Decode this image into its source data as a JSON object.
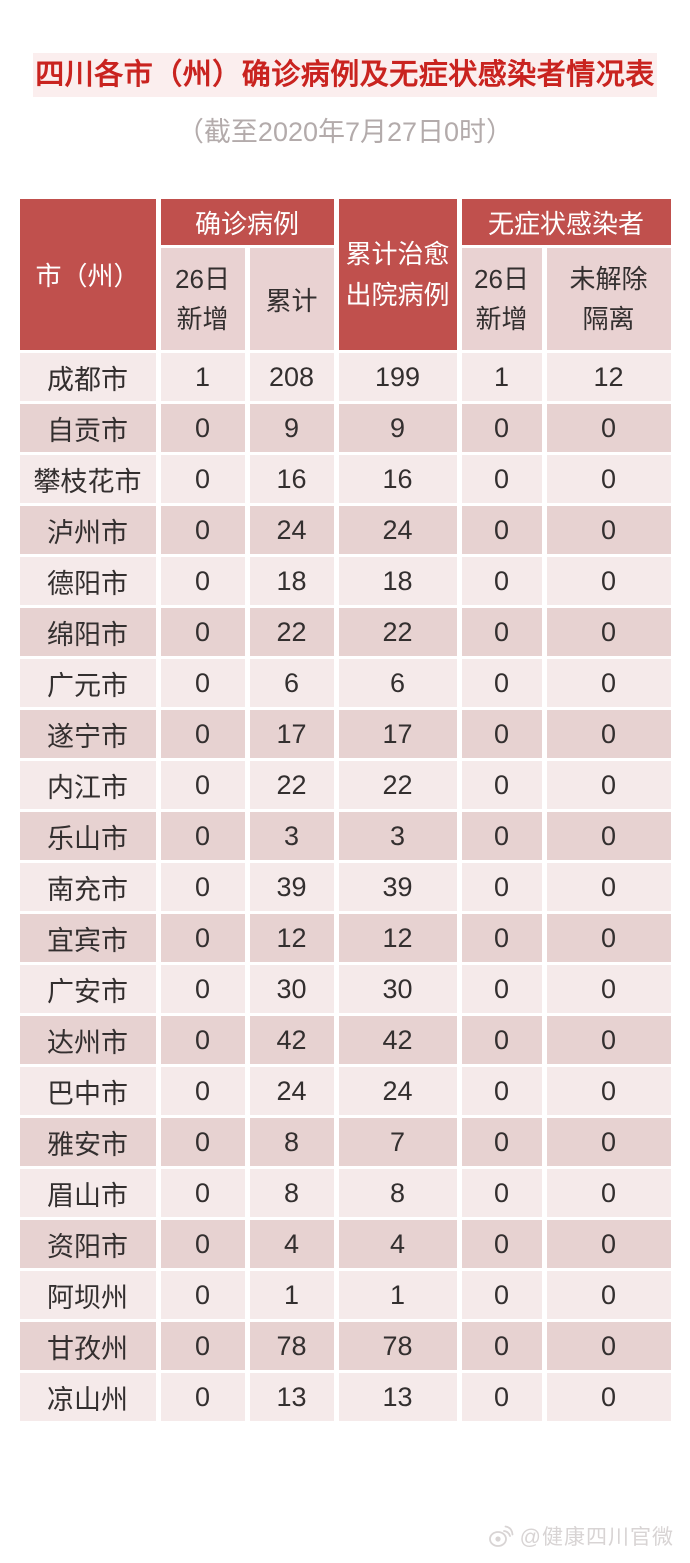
{
  "title": {
    "text": "四川各市（州）确诊病例及无症状感染者情况表",
    "color": "#c9231f",
    "band_color": "#fbeeee"
  },
  "subtitle": {
    "text": "（截至2020年7月27日0时）",
    "color": "#b3abab"
  },
  "watermark": {
    "icon": "weibo-icon",
    "text": "@健康四川官微",
    "color": "#d8d4d4"
  },
  "colors": {
    "header_red": "#c0504d",
    "subheader_pink": "#e9d2d2",
    "row_light": "#f5eaea",
    "row_dark": "#e7d2d1",
    "header_text": "#ffffff",
    "cell_text": "#332f2f",
    "gap": "#ffffff"
  },
  "chart_data": {
    "type": "table",
    "title": "四川各市（州）确诊病例及无症状感染者情况表",
    "as_of": "（截至2020年7月27日0时）",
    "column_groups": [
      {
        "label": "市（州）",
        "span": 1,
        "rowspan": 2
      },
      {
        "label": "确诊病例",
        "span": 2,
        "rowspan": 1
      },
      {
        "label": "累计治愈\n出院病例",
        "span": 1,
        "rowspan": 2
      },
      {
        "label": "无症状感染者",
        "span": 2,
        "rowspan": 1
      }
    ],
    "sub_headers": [
      "26日\n新增",
      "累计",
      "26日\n新增",
      "未解除\n隔离"
    ],
    "columns": [
      "市（州）",
      "确诊病例-26日新增",
      "确诊病例-累计",
      "累计治愈出院病例",
      "无症状感染者-26日新增",
      "无症状感染者-未解除隔离"
    ],
    "rows": [
      [
        "成都市",
        1,
        208,
        199,
        1,
        12
      ],
      [
        "自贡市",
        0,
        9,
        9,
        0,
        0
      ],
      [
        "攀枝花市",
        0,
        16,
        16,
        0,
        0
      ],
      [
        "泸州市",
        0,
        24,
        24,
        0,
        0
      ],
      [
        "德阳市",
        0,
        18,
        18,
        0,
        0
      ],
      [
        "绵阳市",
        0,
        22,
        22,
        0,
        0
      ],
      [
        "广元市",
        0,
        6,
        6,
        0,
        0
      ],
      [
        "遂宁市",
        0,
        17,
        17,
        0,
        0
      ],
      [
        "内江市",
        0,
        22,
        22,
        0,
        0
      ],
      [
        "乐山市",
        0,
        3,
        3,
        0,
        0
      ],
      [
        "南充市",
        0,
        39,
        39,
        0,
        0
      ],
      [
        "宜宾市",
        0,
        12,
        12,
        0,
        0
      ],
      [
        "广安市",
        0,
        30,
        30,
        0,
        0
      ],
      [
        "达州市",
        0,
        42,
        42,
        0,
        0
      ],
      [
        "巴中市",
        0,
        24,
        24,
        0,
        0
      ],
      [
        "雅安市",
        0,
        8,
        7,
        0,
        0
      ],
      [
        "眉山市",
        0,
        8,
        8,
        0,
        0
      ],
      [
        "资阳市",
        0,
        4,
        4,
        0,
        0
      ],
      [
        "阿坝州",
        0,
        1,
        1,
        0,
        0
      ],
      [
        "甘孜州",
        0,
        78,
        78,
        0,
        0
      ],
      [
        "凉山州",
        0,
        13,
        13,
        0,
        0
      ]
    ]
  }
}
